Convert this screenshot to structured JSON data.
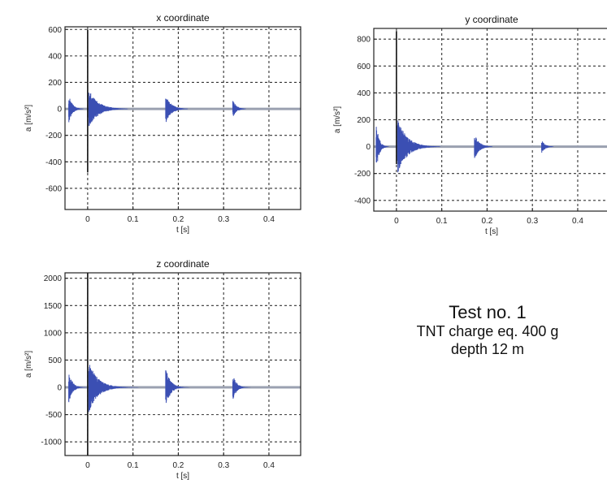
{
  "chart_data": [
    {
      "type": "line",
      "title": "x coordinate",
      "xlabel": "t [s]",
      "ylabel": "a [m/s²]",
      "xlim": [
        -0.05,
        0.47
      ],
      "ylim": [
        -760,
        620
      ],
      "xticks": [
        0,
        0.1,
        0.2,
        0.3,
        0.4
      ],
      "xtick_labels": [
        "0",
        "0.1",
        "0.2",
        "0.3",
        "0.4"
      ],
      "yticks": [
        -600,
        -400,
        -200,
        0,
        200,
        400,
        600
      ],
      "ytick_labels": [
        "-600",
        "-400",
        "-200",
        "0",
        "200",
        "400",
        "600"
      ],
      "grid": true,
      "color": "#3b4fb3",
      "spike": {
        "t": 0,
        "max": 600,
        "min": -480
      },
      "bursts": [
        {
          "t": -0.042,
          "amp": 110,
          "decay": 0.008
        },
        {
          "t": 0.002,
          "amp": 150,
          "decay": 0.02
        },
        {
          "t": 0.172,
          "amp": 110,
          "decay": 0.012
        },
        {
          "t": 0.32,
          "amp": 70,
          "decay": 0.008
        }
      ]
    },
    {
      "type": "line",
      "title": "y coordinate",
      "xlabel": "t [s]",
      "ylabel": "a [m/s²]",
      "xlim": [
        -0.05,
        0.47
      ],
      "ylim": [
        -480,
        880
      ],
      "xticks": [
        0,
        0.1,
        0.2,
        0.3,
        0.4
      ],
      "xtick_labels": [
        "0",
        "0.1",
        "0.2",
        "0.3",
        "0.4"
      ],
      "yticks": [
        -400,
        -200,
        0,
        200,
        400,
        600,
        800
      ],
      "ytick_labels": [
        "-400",
        "-200",
        "0",
        "200",
        "400",
        "600",
        "800"
      ],
      "grid": true,
      "color": "#3b4fb3",
      "spike": {
        "t": 0,
        "max": 860,
        "min": -130
      },
      "bursts": [
        {
          "t": -0.045,
          "amp": 200,
          "decay": 0.006
        },
        {
          "t": 0.002,
          "amp": 220,
          "decay": 0.02
        },
        {
          "t": 0.172,
          "amp": 100,
          "decay": 0.01
        },
        {
          "t": 0.32,
          "amp": 50,
          "decay": 0.008
        }
      ]
    },
    {
      "type": "line",
      "title": "z coordinate",
      "xlabel": "t [s]",
      "ylabel": "a [m/s²]",
      "xlim": [
        -0.05,
        0.47
      ],
      "ylim": [
        -1250,
        2100
      ],
      "xticks": [
        0,
        0.1,
        0.2,
        0.3,
        0.4
      ],
      "xtick_labels": [
        "0",
        "0.1",
        "0.2",
        "0.3",
        "0.4"
      ],
      "yticks": [
        -1000,
        -500,
        0,
        500,
        1000,
        1500,
        2000
      ],
      "ytick_labels": [
        "-1000",
        "-500",
        "0",
        "500",
        "1000",
        "1500",
        "2000"
      ],
      "grid": true,
      "color": "#3b4fb3",
      "spike": {
        "t": 0,
        "max": 2100,
        "min": -1250
      },
      "bursts": [
        {
          "t": -0.042,
          "amp": 300,
          "decay": 0.008
        },
        {
          "t": 0.002,
          "amp": 480,
          "decay": 0.02
        },
        {
          "t": 0.172,
          "amp": 380,
          "decay": 0.01
        },
        {
          "t": 0.32,
          "amp": 250,
          "decay": 0.008
        }
      ]
    }
  ],
  "test_info": {
    "title": "Test no. 1",
    "charge": "TNT charge eq. 400 g",
    "depth": "depth  12 m"
  }
}
